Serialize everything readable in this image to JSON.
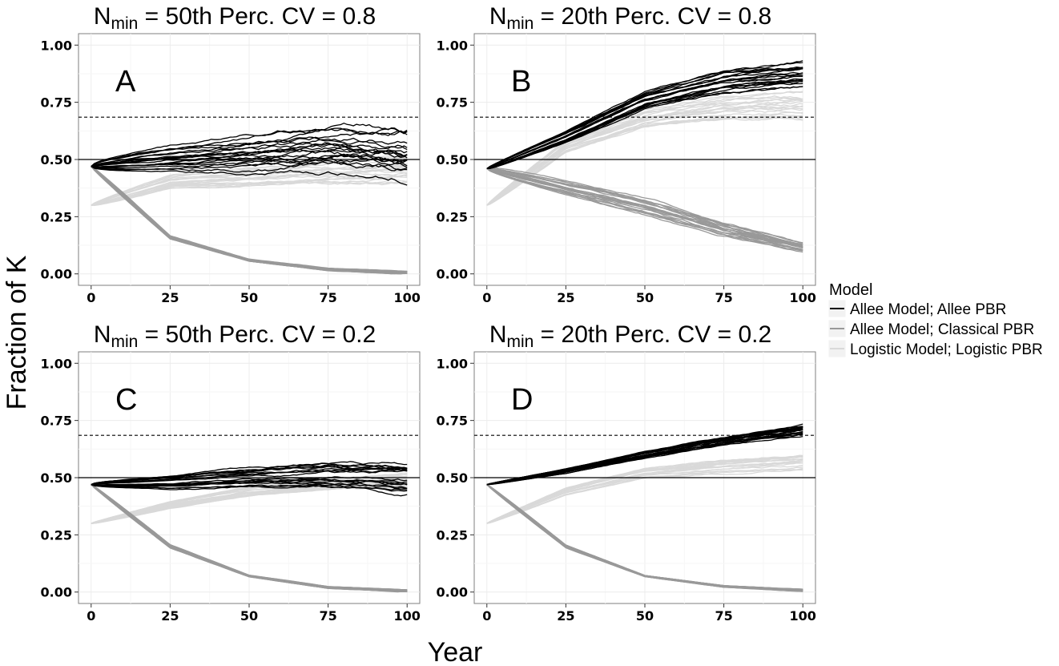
{
  "figure": {
    "ylabel": "Fraction of K",
    "xlabel": "Year"
  },
  "legend": {
    "title": "Model",
    "items": [
      {
        "label": "Allee Model; Allee PBR",
        "color": "#000000"
      },
      {
        "label": "Allee Model; Classical PBR",
        "color": "#999999"
      },
      {
        "label": "Logistic Model; Logistic PBR",
        "color": "#d9d9d9"
      }
    ]
  },
  "chart_data": [
    {
      "id": "A",
      "type": "line",
      "title_main": "N",
      "title_sub": "min",
      "title_rest": " = 50th  Perc.  CV = 0.8",
      "panel_label": "A",
      "xlim": [
        -4,
        104
      ],
      "ylim": [
        -0.05,
        1.05
      ],
      "xticks": [
        0,
        25,
        50,
        75,
        100
      ],
      "yticks": [
        0.0,
        0.25,
        0.5,
        0.75,
        1.0
      ],
      "ytick_labels": [
        "0.00",
        "0.25",
        "0.50",
        "0.75",
        "1.00"
      ],
      "hlines": [
        {
          "y": 0.5,
          "style": "solid"
        },
        {
          "y": 0.685,
          "style": "dashed"
        }
      ],
      "series_groups": [
        {
          "name": "Allee Model; Allee PBR",
          "color": "#000000",
          "trend": {
            "x": [
              0,
              25,
              50,
              75,
              100
            ],
            "y": [
              0.47,
              0.5,
              0.52,
              0.54,
              0.52
            ]
          },
          "spread": 0.12
        },
        {
          "name": "Allee Model; Classical PBR",
          "color": "#999999",
          "trend": {
            "x": [
              0,
              25,
              50,
              75,
              100
            ],
            "y": [
              0.47,
              0.16,
              0.06,
              0.02,
              0.005
            ]
          },
          "spread": 0.05
        },
        {
          "name": "Logistic Model; Logistic PBR",
          "color": "#d9d9d9",
          "trend": {
            "x": [
              0,
              25,
              50,
              75,
              100
            ],
            "y": [
              0.3,
              0.4,
              0.42,
              0.44,
              0.45
            ]
          },
          "spread": 0.06
        }
      ]
    },
    {
      "id": "B",
      "type": "line",
      "title_main": "N",
      "title_sub": "min",
      "title_rest": " = 20th  Perc.  CV = 0.8",
      "panel_label": "B",
      "xlim": [
        -4,
        104
      ],
      "ylim": [
        -0.05,
        1.05
      ],
      "xticks": [
        0,
        25,
        50,
        75,
        100
      ],
      "yticks": [
        0.0,
        0.25,
        0.5,
        0.75,
        1.0
      ],
      "ytick_labels": [
        "0.00",
        "0.25",
        "0.50",
        "0.75",
        "1.00"
      ],
      "hlines": [
        {
          "y": 0.5,
          "style": "solid"
        },
        {
          "y": 0.685,
          "style": "dashed"
        }
      ],
      "series_groups": [
        {
          "name": "Allee Model; Allee PBR",
          "color": "#000000",
          "trend": {
            "x": [
              0,
              25,
              50,
              75,
              100
            ],
            "y": [
              0.46,
              0.6,
              0.76,
              0.84,
              0.87
            ]
          },
          "spread": 0.05
        },
        {
          "name": "Allee Model; Classical PBR",
          "color": "#999999",
          "trend": {
            "x": [
              0,
              25,
              50,
              75,
              100
            ],
            "y": [
              0.46,
              0.38,
              0.3,
              0.2,
              0.12
            ]
          },
          "spread": 0.08
        },
        {
          "name": "Logistic Model; Logistic PBR",
          "color": "#d9d9d9",
          "trend": {
            "x": [
              0,
              25,
              50,
              75,
              100
            ],
            "y": [
              0.3,
              0.56,
              0.68,
              0.73,
              0.74
            ]
          },
          "spread": 0.06
        }
      ]
    },
    {
      "id": "C",
      "type": "line",
      "title_main": "N",
      "title_sub": "min",
      "title_rest": " = 50th  Perc.  CV = 0.2",
      "panel_label": "C",
      "xlim": [
        -4,
        104
      ],
      "ylim": [
        -0.05,
        1.05
      ],
      "xticks": [
        0,
        25,
        50,
        75,
        100
      ],
      "yticks": [
        0.0,
        0.25,
        0.5,
        0.75,
        1.0
      ],
      "ytick_labels": [
        "0.00",
        "0.25",
        "0.50",
        "0.75",
        "1.00"
      ],
      "hlines": [
        {
          "y": 0.5,
          "style": "solid"
        },
        {
          "y": 0.685,
          "style": "dashed"
        }
      ],
      "series_groups": [
        {
          "name": "Allee Model; Allee PBR",
          "color": "#000000",
          "trend": {
            "x": [
              0,
              25,
              50,
              75,
              100
            ],
            "y": [
              0.47,
              0.48,
              0.5,
              0.51,
              0.5
            ]
          },
          "spread": 0.06
        },
        {
          "name": "Allee Model; Classical PBR",
          "color": "#999999",
          "trend": {
            "x": [
              0,
              25,
              50,
              75,
              100
            ],
            "y": [
              0.47,
              0.2,
              0.07,
              0.02,
              0.005
            ]
          },
          "spread": 0.035
        },
        {
          "name": "Logistic Model; Logistic PBR",
          "color": "#d9d9d9",
          "trend": {
            "x": [
              0,
              25,
              50,
              75,
              100
            ],
            "y": [
              0.3,
              0.38,
              0.44,
              0.47,
              0.49
            ]
          },
          "spread": 0.03
        }
      ]
    },
    {
      "id": "D",
      "type": "line",
      "title_main": "N",
      "title_sub": "min",
      "title_rest": " = 20th  Perc.  CV = 0.2",
      "panel_label": "D",
      "xlim": [
        -4,
        104
      ],
      "ylim": [
        -0.05,
        1.05
      ],
      "xticks": [
        0,
        25,
        50,
        75,
        100
      ],
      "yticks": [
        0.0,
        0.25,
        0.5,
        0.75,
        1.0
      ],
      "ytick_labels": [
        "0.00",
        "0.25",
        "0.50",
        "0.75",
        "1.00"
      ],
      "hlines": [
        {
          "y": 0.5,
          "style": "solid"
        },
        {
          "y": 0.685,
          "style": "dashed"
        }
      ],
      "series_groups": [
        {
          "name": "Allee Model; Allee PBR",
          "color": "#000000",
          "trend": {
            "x": [
              0,
              25,
              50,
              75,
              100
            ],
            "y": [
              0.47,
              0.53,
              0.6,
              0.66,
              0.71
            ]
          },
          "spread": 0.025
        },
        {
          "name": "Allee Model; Classical PBR",
          "color": "#999999",
          "trend": {
            "x": [
              0,
              25,
              50,
              75,
              100
            ],
            "y": [
              0.47,
              0.2,
              0.07,
              0.025,
              0.008
            ]
          },
          "spread": 0.035
        },
        {
          "name": "Logistic Model; Logistic PBR",
          "color": "#d9d9d9",
          "trend": {
            "x": [
              0,
              25,
              50,
              75,
              100
            ],
            "y": [
              0.3,
              0.44,
              0.52,
              0.55,
              0.57
            ]
          },
          "spread": 0.03
        }
      ]
    }
  ]
}
